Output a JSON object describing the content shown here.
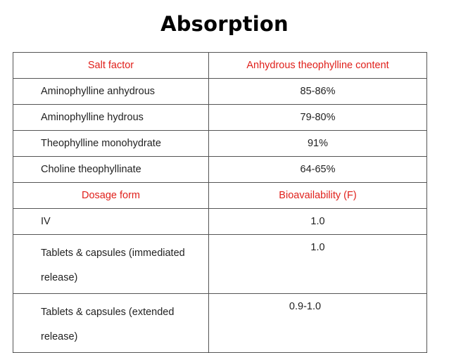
{
  "title": "Absorption",
  "table": {
    "header1": {
      "col1": "Salt factor",
      "col2": "Anhydrous theophylline content"
    },
    "rows1": [
      {
        "label": "Aminophylline anhydrous",
        "value": "85-86%"
      },
      {
        "label": "Aminophylline hydrous",
        "value": "79-80%"
      },
      {
        "label": "Theophylline monohydrate",
        "value": "91%"
      },
      {
        "label": "Choline theophyllinate",
        "value": "64-65%"
      }
    ],
    "header2": {
      "col1": "Dosage form",
      "col2": "Bioavailability (F)"
    },
    "rows2": [
      {
        "label": "IV",
        "value": "1.0"
      },
      {
        "label": "Tablets & capsules (immediated release)",
        "value": "1.0"
      },
      {
        "label": "Tablets & capsules (extended release)",
        "value": "0.9-1.0"
      }
    ]
  },
  "colors": {
    "header_text": "#e0201b",
    "border": "#555555"
  }
}
